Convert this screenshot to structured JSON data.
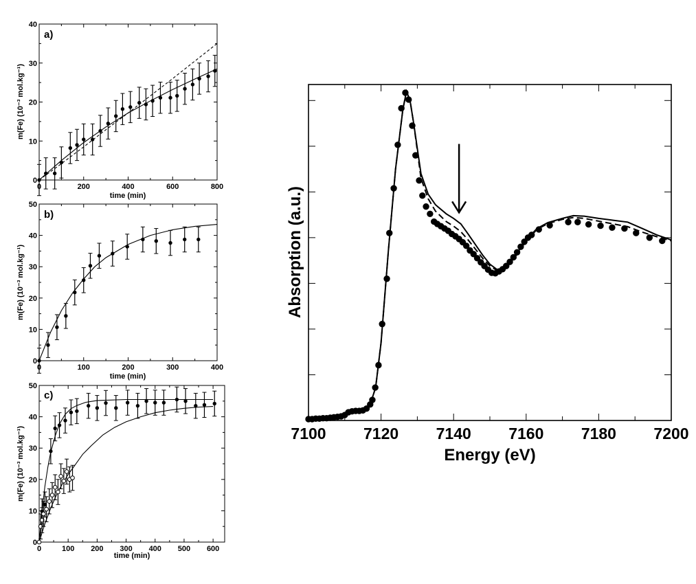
{
  "chart_data": [
    {
      "panel_label": "a)",
      "type": "scatter",
      "xlabel": "time (min)",
      "ylabel": "m(Fe) (10⁻³ mol.kg⁻¹)",
      "xlim": [
        0,
        800
      ],
      "ylim": [
        0,
        40
      ],
      "xticks": [
        0,
        200,
        400,
        600,
        800
      ],
      "yticks": [
        0,
        10,
        20,
        30,
        40
      ],
      "points": [
        [
          0,
          0,
          4
        ],
        [
          30,
          1.7,
          4
        ],
        [
          70,
          1.7,
          4
        ],
        [
          100,
          4.5,
          4
        ],
        [
          140,
          8.2,
          4
        ],
        [
          170,
          9,
          4
        ],
        [
          200,
          10.4,
          4
        ],
        [
          240,
          10.4,
          4
        ],
        [
          275,
          12.6,
          4
        ],
        [
          310,
          14.5,
          4
        ],
        [
          345,
          16.4,
          4
        ],
        [
          375,
          18.2,
          4
        ],
        [
          410,
          18.7,
          4
        ],
        [
          450,
          19.8,
          4
        ],
        [
          480,
          19.4,
          4
        ],
        [
          510,
          20.3,
          4
        ],
        [
          545,
          21.1,
          4
        ],
        [
          590,
          21.1,
          4
        ],
        [
          620,
          21.6,
          4
        ],
        [
          655,
          23.4,
          4
        ],
        [
          690,
          24.5,
          4
        ],
        [
          720,
          26,
          4
        ],
        [
          760,
          26.6,
          4
        ],
        [
          790,
          28,
          4
        ]
      ],
      "curves": [
        {
          "style": "solid",
          "x": [
            0,
            100,
            200,
            300,
            400,
            500,
            600,
            700,
            800
          ],
          "y": [
            0,
            5,
            9.6,
            13.6,
            17.2,
            20.3,
            23.2,
            25.9,
            28.5
          ]
        },
        {
          "style": "dashed",
          "x": [
            0,
            100,
            200,
            300,
            400,
            500,
            600,
            700,
            800
          ],
          "y": [
            0,
            4.2,
            8.5,
            12.9,
            17.2,
            21.6,
            26,
            30.5,
            35
          ]
        }
      ]
    },
    {
      "panel_label": "b)",
      "type": "scatter",
      "xlabel": "time (min)",
      "ylabel": "m(Fe) (10⁻³ mol.kg⁻¹)",
      "xlim": [
        0,
        400
      ],
      "ylim": [
        0,
        50
      ],
      "xticks": [
        0,
        100,
        200,
        300,
        400
      ],
      "yticks": [
        0,
        10,
        20,
        30,
        40,
        50
      ],
      "points": [
        [
          0,
          0,
          4
        ],
        [
          20,
          5,
          4
        ],
        [
          40,
          10.7,
          4
        ],
        [
          60,
          14.3,
          4
        ],
        [
          80,
          21.8,
          4
        ],
        [
          100,
          25.7,
          4
        ],
        [
          115,
          30.3,
          4
        ],
        [
          135,
          33.5,
          4
        ],
        [
          165,
          34.2,
          4
        ],
        [
          198,
          36.4,
          4
        ],
        [
          233,
          38.7,
          4
        ],
        [
          263,
          38.2,
          4
        ],
        [
          295,
          37.6,
          4
        ],
        [
          327,
          38.7,
          4
        ],
        [
          358,
          38.7,
          4
        ]
      ],
      "curves": [
        {
          "style": "solid",
          "x": [
            0,
            25,
            50,
            75,
            100,
            125,
            150,
            200,
            250,
            300,
            350,
            400
          ],
          "y": [
            0,
            8.9,
            16,
            21.6,
            26.1,
            30,
            32.9,
            37.1,
            40,
            41.8,
            42.9,
            43.5
          ]
        }
      ]
    },
    {
      "panel_label": "c)",
      "type": "scatter",
      "xlabel": "time (min)",
      "ylabel": "m(Fe) (10⁻³ mol.kg⁻¹)",
      "xlim": [
        0,
        640
      ],
      "ylim": [
        0,
        50
      ],
      "xticks": [
        0,
        100,
        200,
        300,
        400,
        500,
        600
      ],
      "yticks": [
        0,
        10,
        20,
        30,
        40,
        50
      ],
      "series": [
        {
          "marker": "filled",
          "points": [
            [
              10,
              9.8,
              4
            ],
            [
              20,
              12,
              4
            ],
            [
              40,
              29,
              4
            ],
            [
              55,
              36.3,
              4
            ],
            [
              70,
              37.3,
              4
            ],
            [
              90,
              38.8,
              4
            ],
            [
              110,
              41.4,
              4
            ],
            [
              130,
              41.8,
              4
            ],
            [
              170,
              43.5,
              4
            ],
            [
              200,
              42.8,
              4
            ],
            [
              230,
              44.4,
              4
            ],
            [
              265,
              42.8,
              4
            ],
            [
              305,
              44.5,
              4
            ],
            [
              340,
              43.5,
              4
            ],
            [
              370,
              45,
              4
            ],
            [
              400,
              44.5,
              4
            ],
            [
              430,
              44.5,
              4
            ],
            [
              475,
              45.5,
              4
            ],
            [
              505,
              45,
              4
            ],
            [
              540,
              43.5,
              4
            ],
            [
              570,
              43.8,
              4
            ],
            [
              605,
              44.2,
              4
            ]
          ]
        },
        {
          "marker": "open",
          "points": [
            [
              0,
              0,
              0
            ],
            [
              5,
              5,
              4
            ],
            [
              10,
              7,
              4
            ],
            [
              15,
              9,
              4
            ],
            [
              25,
              10.5,
              4
            ],
            [
              35,
              13,
              4
            ],
            [
              45,
              15,
              4
            ],
            [
              55,
              17.5,
              4
            ],
            [
              65,
              16,
              4
            ],
            [
              75,
              21,
              4
            ],
            [
              85,
              19.5,
              4
            ],
            [
              95,
              22.5,
              4
            ],
            [
              105,
              20,
              4
            ],
            [
              115,
              20.5,
              4
            ]
          ]
        }
      ],
      "curves": [
        {
          "style": "solid",
          "x": [
            0,
            10,
            20,
            30,
            40,
            55,
            70,
            90,
            110,
            130,
            160,
            200,
            300,
            400,
            500,
            600
          ],
          "y": [
            0,
            10.1,
            17.9,
            24,
            28.8,
            33.8,
            37.7,
            40.8,
            42.6,
            43.6,
            44.6,
            45.2,
            45.5,
            45.5,
            45.5,
            45.5
          ]
        },
        {
          "style": "solid",
          "x": [
            0,
            20,
            40,
            60,
            80,
            100,
            120,
            150,
            180,
            220,
            260,
            300,
            350,
            400,
            450,
            500,
            550,
            600
          ],
          "y": [
            0,
            5.9,
            10.9,
            15.1,
            18.6,
            21.6,
            24.1,
            28,
            30.8,
            34.2,
            36.6,
            38.4,
            40.0,
            41.3,
            42.1,
            42.7,
            43.1,
            43.3
          ]
        }
      ]
    },
    {
      "type": "line",
      "xlabel": "Energy (eV)",
      "ylabel": "Absorption (a.u.)",
      "xlim": [
        7100,
        7200
      ],
      "ylim": [
        0,
        7.35
      ],
      "xticks": [
        7100,
        7120,
        7140,
        7160,
        7180,
        7200
      ],
      "y_tick_labels_shown": false,
      "annotation": {
        "type": "arrow-down",
        "x": 7141.5,
        "y_from": 6.05,
        "y_to": 4.55
      },
      "points": [
        [
          7100,
          0.03
        ],
        [
          7101,
          0.03
        ],
        [
          7102,
          0.04
        ],
        [
          7103,
          0.04
        ],
        [
          7104,
          0.05
        ],
        [
          7105,
          0.05
        ],
        [
          7106,
          0.06
        ],
        [
          7107,
          0.07
        ],
        [
          7108,
          0.08
        ],
        [
          7109,
          0.09
        ],
        [
          7110,
          0.12
        ],
        [
          7111,
          0.18
        ],
        [
          7112,
          0.2
        ],
        [
          7113,
          0.21
        ],
        [
          7114,
          0.21
        ],
        [
          7115,
          0.22
        ],
        [
          7116,
          0.26
        ],
        [
          7117,
          0.35
        ],
        [
          7117.6,
          0.45
        ],
        [
          7118.4,
          0.72
        ],
        [
          7119.3,
          1.21
        ],
        [
          7120.3,
          2.11
        ],
        [
          7121.6,
          3.1
        ],
        [
          7122.3,
          4.1
        ],
        [
          7123.5,
          5.08
        ],
        [
          7124.6,
          6.03
        ],
        [
          7125.6,
          6.83
        ],
        [
          7126.7,
          7.17
        ],
        [
          7127.6,
          7.02
        ],
        [
          7128.6,
          6.45
        ],
        [
          7129.5,
          5.8
        ],
        [
          7130.5,
          5.25
        ],
        [
          7131.4,
          4.92
        ],
        [
          7132.4,
          4.68
        ],
        [
          7133.5,
          4.52
        ],
        [
          7134.6,
          4.35
        ],
        [
          7135.5,
          4.3
        ],
        [
          7136.5,
          4.25
        ],
        [
          7137.5,
          4.2
        ],
        [
          7138.5,
          4.15
        ],
        [
          7139.5,
          4.08
        ],
        [
          7140.5,
          4.03
        ],
        [
          7141.5,
          3.97
        ],
        [
          7142.5,
          3.9
        ],
        [
          7143.5,
          3.82
        ],
        [
          7144.5,
          3.72
        ],
        [
          7145.5,
          3.64
        ],
        [
          7146.5,
          3.55
        ],
        [
          7147.5,
          3.46
        ],
        [
          7148.5,
          3.38
        ],
        [
          7149.5,
          3.3
        ],
        [
          7150.5,
          3.23
        ],
        [
          7151.5,
          3.22
        ],
        [
          7152.5,
          3.26
        ],
        [
          7153.5,
          3.31
        ],
        [
          7154.5,
          3.38
        ],
        [
          7155.5,
          3.47
        ],
        [
          7156.5,
          3.57
        ],
        [
          7157.5,
          3.68
        ],
        [
          7158.5,
          3.8
        ],
        [
          7159.5,
          3.91
        ],
        [
          7160.5,
          4.0
        ],
        [
          7161.5,
          4.06
        ],
        [
          7163.5,
          4.18
        ],
        [
          7166.5,
          4.27
        ],
        [
          7171.6,
          4.34
        ],
        [
          7174.2,
          4.34
        ],
        [
          7177.2,
          4.29
        ],
        [
          7180.5,
          4.26
        ],
        [
          7183.7,
          4.22
        ],
        [
          7187.1,
          4.2
        ],
        [
          7190.3,
          4.1
        ],
        [
          7194,
          4.0
        ],
        [
          7197.5,
          3.93
        ]
      ],
      "curves": [
        {
          "style": "solid",
          "x": [
            7100,
            7105,
            7110,
            7112,
            7115,
            7117,
            7118.5,
            7120,
            7122,
            7124,
            7126,
            7127,
            7128,
            7129,
            7131,
            7133,
            7135,
            7138,
            7140,
            7142,
            7144,
            7146,
            7148,
            7150,
            7152,
            7154,
            7157,
            7160,
            7163,
            7166,
            7170,
            7173,
            7176,
            7180,
            7184,
            7188,
            7192,
            7196,
            7200
          ],
          "y": [
            0.03,
            0.05,
            0.12,
            0.2,
            0.22,
            0.35,
            0.72,
            1.7,
            3.7,
            5.5,
            6.8,
            7.2,
            7.0,
            6.5,
            5.4,
            4.95,
            4.72,
            4.52,
            4.42,
            4.3,
            4.08,
            3.85,
            3.62,
            3.42,
            3.3,
            3.33,
            3.6,
            3.95,
            4.2,
            4.33,
            4.42,
            4.48,
            4.47,
            4.42,
            4.38,
            4.34,
            4.2,
            4.06,
            3.95
          ]
        },
        {
          "style": "dashed",
          "x": [
            7100,
            7105,
            7110,
            7112,
            7115,
            7117,
            7118.5,
            7120,
            7122,
            7124,
            7126,
            7127,
            7128,
            7129,
            7131,
            7133,
            7135,
            7138,
            7140,
            7142,
            7144,
            7146,
            7148,
            7150,
            7152,
            7154,
            7157,
            7160,
            7163,
            7166,
            7170,
            7173,
            7176,
            7180,
            7184,
            7188,
            7192,
            7196,
            7200
          ],
          "y": [
            0.03,
            0.05,
            0.12,
            0.2,
            0.22,
            0.35,
            0.72,
            1.7,
            3.7,
            5.5,
            6.8,
            7.2,
            7.0,
            6.5,
            5.3,
            4.85,
            4.58,
            4.35,
            4.25,
            4.13,
            3.95,
            3.75,
            3.55,
            3.38,
            3.28,
            3.31,
            3.58,
            3.93,
            4.18,
            4.31,
            4.4,
            4.44,
            4.42,
            4.36,
            4.3,
            4.24,
            4.12,
            4.02,
            3.93
          ]
        }
      ]
    }
  ]
}
